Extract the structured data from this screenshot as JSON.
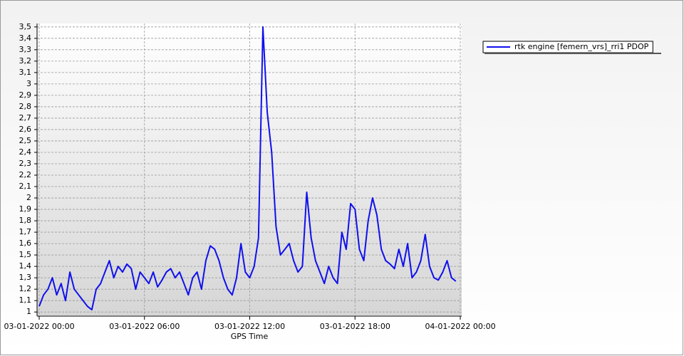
{
  "chart_data": {
    "type": "line",
    "x_label": "GPS Time",
    "x": [
      "03-01-2022 00:00",
      "03-01-2022 00:15",
      "03-01-2022 00:30",
      "03-01-2022 00:45",
      "03-01-2022 01:00",
      "03-01-2022 01:15",
      "03-01-2022 01:30",
      "03-01-2022 01:45",
      "03-01-2022 02:00",
      "03-01-2022 02:15",
      "03-01-2022 02:30",
      "03-01-2022 02:45",
      "03-01-2022 03:00",
      "03-01-2022 03:15",
      "03-01-2022 03:30",
      "03-01-2022 03:45",
      "03-01-2022 04:00",
      "03-01-2022 04:15",
      "03-01-2022 04:30",
      "03-01-2022 04:45",
      "03-01-2022 05:00",
      "03-01-2022 05:15",
      "03-01-2022 05:30",
      "03-01-2022 05:45",
      "03-01-2022 06:00",
      "03-01-2022 06:15",
      "03-01-2022 06:30",
      "03-01-2022 06:45",
      "03-01-2022 07:00",
      "03-01-2022 07:15",
      "03-01-2022 07:30",
      "03-01-2022 07:45",
      "03-01-2022 08:00",
      "03-01-2022 08:15",
      "03-01-2022 08:30",
      "03-01-2022 08:45",
      "03-01-2022 09:00",
      "03-01-2022 09:15",
      "03-01-2022 09:30",
      "03-01-2022 09:45",
      "03-01-2022 10:00",
      "03-01-2022 10:15",
      "03-01-2022 10:30",
      "03-01-2022 10:45",
      "03-01-2022 11:00",
      "03-01-2022 11:15",
      "03-01-2022 11:30",
      "03-01-2022 11:45",
      "03-01-2022 12:00",
      "03-01-2022 12:15",
      "03-01-2022 12:30",
      "03-01-2022 12:45",
      "03-01-2022 13:00",
      "03-01-2022 13:15",
      "03-01-2022 13:30",
      "03-01-2022 13:45",
      "03-01-2022 14:00",
      "03-01-2022 14:15",
      "03-01-2022 14:30",
      "03-01-2022 14:45",
      "03-01-2022 15:00",
      "03-01-2022 15:15",
      "03-01-2022 15:30",
      "03-01-2022 15:45",
      "03-01-2022 16:00",
      "03-01-2022 16:15",
      "03-01-2022 16:30",
      "03-01-2022 16:45",
      "03-01-2022 17:00",
      "03-01-2022 17:15",
      "03-01-2022 17:30",
      "03-01-2022 17:45",
      "03-01-2022 18:00",
      "03-01-2022 18:15",
      "03-01-2022 18:30",
      "03-01-2022 18:45",
      "03-01-2022 19:00",
      "03-01-2022 19:15",
      "03-01-2022 19:30",
      "03-01-2022 19:45",
      "03-01-2022 20:00",
      "03-01-2022 20:15",
      "03-01-2022 20:30",
      "03-01-2022 20:45",
      "03-01-2022 21:00",
      "03-01-2022 21:15",
      "03-01-2022 21:30",
      "03-01-2022 21:45",
      "03-01-2022 22:00",
      "03-01-2022 22:15",
      "03-01-2022 22:30",
      "03-01-2022 22:45",
      "03-01-2022 23:00",
      "03-01-2022 23:15",
      "03-01-2022 23:30",
      "03-01-2022 23:45"
    ],
    "series": [
      {
        "name": "rtk engine [femern_vrs]_rri1 PDOP",
        "color": "#1010ee",
        "values": [
          1.05,
          1.15,
          1.2,
          1.3,
          1.15,
          1.25,
          1.1,
          1.35,
          1.2,
          1.15,
          1.1,
          1.05,
          1.02,
          1.2,
          1.25,
          1.35,
          1.45,
          1.3,
          1.4,
          1.35,
          1.42,
          1.38,
          1.2,
          1.35,
          1.3,
          1.25,
          1.35,
          1.22,
          1.28,
          1.35,
          1.38,
          1.3,
          1.35,
          1.25,
          1.15,
          1.3,
          1.35,
          1.2,
          1.45,
          1.58,
          1.55,
          1.45,
          1.3,
          1.2,
          1.15,
          1.3,
          1.6,
          1.35,
          1.3,
          1.4,
          1.65,
          3.5,
          2.75,
          2.4,
          1.75,
          1.5,
          1.55,
          1.6,
          1.45,
          1.35,
          1.4,
          2.05,
          1.65,
          1.45,
          1.35,
          1.25,
          1.4,
          1.3,
          1.25,
          1.7,
          1.55,
          1.95,
          1.9,
          1.55,
          1.45,
          1.8,
          2.0,
          1.85,
          1.55,
          1.45,
          1.42,
          1.38,
          1.55,
          1.4,
          1.6,
          1.3,
          1.35,
          1.45,
          1.68,
          1.4,
          1.3,
          1.28,
          1.35,
          1.45,
          1.3,
          1.27
        ]
      }
    ],
    "xlim": [
      "03-01-2022 00:00",
      "04-01-2022 00:00"
    ],
    "xticks": [
      "03-01-2022 00:00",
      "03-01-2022 06:00",
      "03-01-2022 12:00",
      "03-01-2022 18:00",
      "04-01-2022 00:00"
    ],
    "ylim": [
      0.97,
      3.53
    ],
    "yticks": [
      1,
      {
        "value": 1.1,
        "label": "1,1"
      },
      {
        "value": 1.2,
        "label": "1,2"
      },
      {
        "value": 1.3,
        "label": "1,3"
      },
      {
        "value": 1.4,
        "label": "1,4"
      },
      {
        "value": 1.5,
        "label": "1,5"
      },
      {
        "value": 1.6,
        "label": "1,6"
      },
      {
        "value": 1.7,
        "label": "1,7"
      },
      {
        "value": 1.8,
        "label": "1,8"
      },
      {
        "value": 1.9,
        "label": "1,9"
      },
      2,
      {
        "value": 2.1,
        "label": "2,1"
      },
      {
        "value": 2.2,
        "label": "2,2"
      },
      {
        "value": 2.3,
        "label": "2,3"
      },
      {
        "value": 2.4,
        "label": "2,4"
      },
      {
        "value": 2.5,
        "label": "2,5"
      },
      {
        "value": 2.6,
        "label": "2,6"
      },
      {
        "value": 2.7,
        "label": "2,7"
      },
      {
        "value": 2.8,
        "label": "2,8"
      },
      {
        "value": 2.9,
        "label": "2,9"
      },
      3,
      {
        "value": 3.1,
        "label": "3,1"
      },
      {
        "value": 3.2,
        "label": "3,2"
      },
      {
        "value": 3.3,
        "label": "3,3"
      },
      {
        "value": 3.4,
        "label": "3,4"
      },
      {
        "value": 3.5,
        "label": "3,5"
      }
    ],
    "grid": true,
    "legend_position": "top-right"
  }
}
